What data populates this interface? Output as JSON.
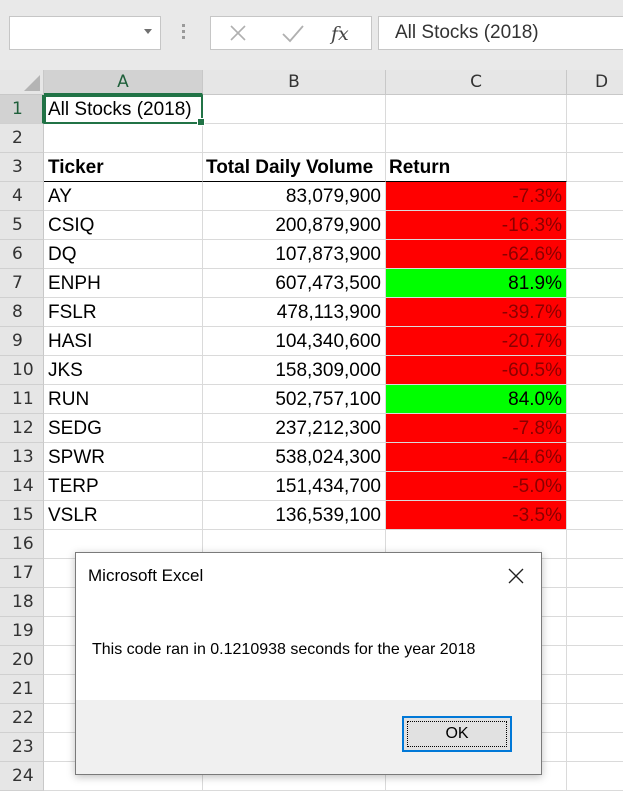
{
  "formula_bar": {
    "name_box_value": "",
    "cancel_icon": "close-icon",
    "enter_icon": "check-icon",
    "function_label": "fx",
    "formula_value": "All Stocks (2018)"
  },
  "sheet": {
    "columns": [
      "A",
      "B",
      "C",
      "D"
    ],
    "rows": [
      "1",
      "2",
      "3",
      "4",
      "5",
      "6",
      "7",
      "8",
      "9",
      "10",
      "11",
      "12",
      "13",
      "14",
      "15",
      "16",
      "17",
      "18",
      "19",
      "20",
      "21",
      "22",
      "23",
      "24"
    ],
    "title": "All Stocks (2018)",
    "headers": {
      "ticker": "Ticker",
      "volume": "Total Daily Volume",
      "return": "Return"
    },
    "data": [
      {
        "ticker": "AY",
        "volume": "83,079,900",
        "return": "-7.3%",
        "status": "negative"
      },
      {
        "ticker": "CSIQ",
        "volume": "200,879,900",
        "return": "-16.3%",
        "status": "negative"
      },
      {
        "ticker": "DQ",
        "volume": "107,873,900",
        "return": "-62.6%",
        "status": "negative"
      },
      {
        "ticker": "ENPH",
        "volume": "607,473,500",
        "return": "81.9%",
        "status": "positive"
      },
      {
        "ticker": "FSLR",
        "volume": "478,113,900",
        "return": "-39.7%",
        "status": "negative"
      },
      {
        "ticker": "HASI",
        "volume": "104,340,600",
        "return": "-20.7%",
        "status": "negative"
      },
      {
        "ticker": "JKS",
        "volume": "158,309,000",
        "return": "-60.5%",
        "status": "negative"
      },
      {
        "ticker": "RUN",
        "volume": "502,757,100",
        "return": "84.0%",
        "status": "positive"
      },
      {
        "ticker": "SEDG",
        "volume": "237,212,300",
        "return": "-7.8%",
        "status": "negative"
      },
      {
        "ticker": "SPWR",
        "volume": "538,024,300",
        "return": "-44.6%",
        "status": "negative"
      },
      {
        "ticker": "TERP",
        "volume": "151,434,700",
        "return": "-5.0%",
        "status": "negative"
      },
      {
        "ticker": "VSLR",
        "volume": "136,539,100",
        "return": "-3.5%",
        "status": "negative"
      }
    ],
    "colors": {
      "negative_fill": "#ff0000",
      "positive_fill": "#00ff00",
      "selection": "#217346"
    }
  },
  "dialog": {
    "title": "Microsoft Excel",
    "message": "This code ran in 0.1210938 seconds for the year 2018",
    "ok_label": "OK",
    "close_icon": "close-icon"
  }
}
